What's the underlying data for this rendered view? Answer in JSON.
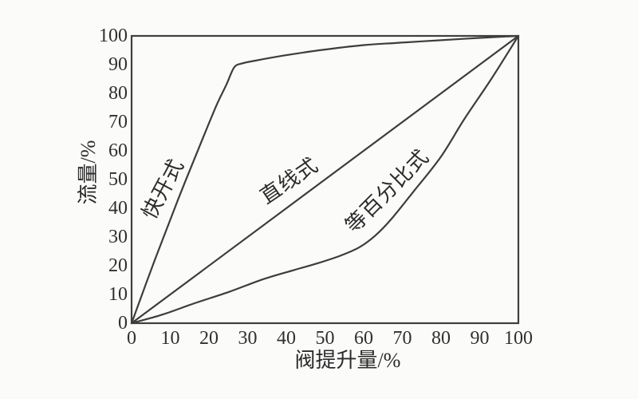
{
  "page": {
    "background": "#fbfbfa",
    "line_color": "#3d3d3d",
    "frame_color": "#3f3f3f",
    "text_color": "#2b2b2b"
  },
  "chart_data": {
    "type": "line",
    "title": "",
    "xlabel": "阀提升量/%",
    "ylabel": "流量/%",
    "xlim": [
      0,
      100
    ],
    "ylim": [
      0,
      100
    ],
    "x_ticks": [
      0,
      10,
      20,
      30,
      40,
      50,
      60,
      70,
      80,
      90,
      100
    ],
    "y_ticks": [
      0,
      10,
      20,
      30,
      40,
      50,
      60,
      70,
      80,
      90,
      100
    ],
    "grid": false,
    "legend_position": "none",
    "frame": "full-box",
    "series": [
      {
        "id": "quick-opening",
        "name": "快开式",
        "points": [
          [
            0,
            0
          ],
          [
            6,
            22
          ],
          [
            12,
            43
          ],
          [
            18,
            63
          ],
          [
            22,
            76
          ],
          [
            24.5,
            83
          ],
          [
            26.5,
            89
          ],
          [
            28.5,
            90.4
          ],
          [
            32,
            91.4
          ],
          [
            40,
            93.3
          ],
          [
            48.5,
            95
          ],
          [
            60,
            96.8
          ],
          [
            69,
            97.6
          ],
          [
            80,
            98.5
          ],
          [
            90,
            99.3
          ],
          [
            100,
            100
          ]
        ]
      },
      {
        "id": "linear",
        "name": "直线式",
        "points": [
          [
            0,
            0
          ],
          [
            100,
            100
          ]
        ]
      },
      {
        "id": "equal-percentage",
        "name": "等百分比式",
        "points": [
          [
            0,
            0
          ],
          [
            8,
            3
          ],
          [
            16,
            6.8
          ],
          [
            25,
            10.8
          ],
          [
            34,
            15.3
          ],
          [
            42,
            18.5
          ],
          [
            48,
            20.8
          ],
          [
            54,
            23.5
          ],
          [
            59,
            26.5
          ],
          [
            63,
            30.5
          ],
          [
            67,
            36
          ],
          [
            73,
            46
          ],
          [
            80,
            58
          ],
          [
            86,
            71
          ],
          [
            93,
            85
          ],
          [
            100,
            100
          ]
        ]
      }
    ],
    "annotations": [
      {
        "id": "quick-opening",
        "text": "快开式",
        "x": 8.2,
        "y": 46.7,
        "rotation_deg": -62
      },
      {
        "id": "linear",
        "text": "直线式",
        "x": 40.8,
        "y": 49.4,
        "rotation_deg": -34
      },
      {
        "id": "equal-percentage",
        "text": "等百分比式",
        "x": 66.2,
        "y": 45.8,
        "rotation_deg": -45
      }
    ]
  }
}
